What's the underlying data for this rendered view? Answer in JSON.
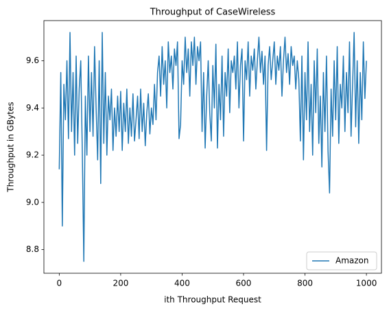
{
  "chart_data": {
    "type": "line",
    "title": "Throughput of CaseWireless",
    "x_label": "ith Throughput Request",
    "y_label": "Throughput in GBytes",
    "legend": "lower right",
    "grid": false,
    "xlim": [
      -49.95,
      1048.95
    ],
    "xticks": [
      0,
      200,
      400,
      600,
      800,
      1000
    ],
    "ylim": [
      8.7,
      9.77
    ],
    "yticks": [
      8.8,
      {
        "value": 9,
        "label": "9.0"
      },
      9.2,
      9.4,
      9.6
    ],
    "x": [
      0,
      5,
      10,
      15,
      20,
      25,
      30,
      35,
      40,
      45,
      50,
      55,
      60,
      65,
      70,
      75,
      80,
      85,
      90,
      95,
      100,
      105,
      110,
      115,
      120,
      125,
      130,
      135,
      140,
      145,
      150,
      155,
      160,
      165,
      170,
      175,
      180,
      185,
      190,
      195,
      200,
      205,
      210,
      215,
      220,
      225,
      230,
      235,
      240,
      245,
      250,
      255,
      260,
      265,
      270,
      275,
      280,
      285,
      290,
      295,
      300,
      305,
      310,
      315,
      320,
      325,
      330,
      335,
      340,
      345,
      350,
      355,
      360,
      365,
      370,
      375,
      380,
      385,
      390,
      395,
      400,
      405,
      410,
      415,
      420,
      425,
      430,
      435,
      440,
      445,
      450,
      455,
      460,
      465,
      470,
      475,
      480,
      485,
      490,
      495,
      500,
      505,
      510,
      515,
      520,
      525,
      530,
      535,
      540,
      545,
      550,
      555,
      560,
      565,
      570,
      575,
      580,
      585,
      590,
      595,
      600,
      605,
      610,
      615,
      620,
      625,
      630,
      635,
      640,
      645,
      650,
      655,
      660,
      665,
      670,
      675,
      680,
      685,
      690,
      695,
      700,
      705,
      710,
      715,
      720,
      725,
      730,
      735,
      740,
      745,
      750,
      755,
      760,
      765,
      770,
      775,
      780,
      785,
      790,
      795,
      800,
      805,
      810,
      815,
      820,
      825,
      830,
      835,
      840,
      845,
      850,
      855,
      860,
      865,
      870,
      875,
      880,
      885,
      890,
      895,
      900,
      905,
      910,
      915,
      920,
      925,
      930,
      935,
      940,
      945,
      950,
      955,
      960,
      965,
      970,
      975,
      980,
      985,
      990,
      995,
      1000
    ],
    "series": [
      {
        "name": "Amazon",
        "color": "#1f77b4",
        "values": [
          9.14,
          9.55,
          8.9,
          9.5,
          9.35,
          9.6,
          9.27,
          9.72,
          9.3,
          9.55,
          9.2,
          9.62,
          9.25,
          9.48,
          9.6,
          9.22,
          8.75,
          9.45,
          9.2,
          9.62,
          9.3,
          9.55,
          9.28,
          9.66,
          9.4,
          9.18,
          9.6,
          9.08,
          9.72,
          9.25,
          9.55,
          9.2,
          9.45,
          9.35,
          9.48,
          9.22,
          9.4,
          9.28,
          9.45,
          9.3,
          9.47,
          9.22,
          9.42,
          9.3,
          9.48,
          9.25,
          9.4,
          9.28,
          9.46,
          9.26,
          9.35,
          9.45,
          9.27,
          9.48,
          9.3,
          9.42,
          9.24,
          9.38,
          9.46,
          9.29,
          9.4,
          9.33,
          9.5,
          9.35,
          9.55,
          9.62,
          9.45,
          9.66,
          9.5,
          9.6,
          9.4,
          9.68,
          9.55,
          9.62,
          9.48,
          9.65,
          9.58,
          9.68,
          9.27,
          9.33,
          9.6,
          9.5,
          9.7,
          9.55,
          9.65,
          9.45,
          9.68,
          9.58,
          9.7,
          9.5,
          9.66,
          9.6,
          9.68,
          9.3,
          9.55,
          9.23,
          9.45,
          9.6,
          9.38,
          9.26,
          9.58,
          9.4,
          9.67,
          9.23,
          9.5,
          9.35,
          9.62,
          9.28,
          9.55,
          9.45,
          9.65,
          9.38,
          9.6,
          9.55,
          9.62,
          9.48,
          9.68,
          9.4,
          9.58,
          9.65,
          9.26,
          9.6,
          9.52,
          9.68,
          9.45,
          9.62,
          9.56,
          9.65,
          9.48,
          9.6,
          9.7,
          9.55,
          9.64,
          9.5,
          9.62,
          9.22,
          9.58,
          9.66,
          9.52,
          9.6,
          9.68,
          9.5,
          9.62,
          9.56,
          9.66,
          9.45,
          9.6,
          9.7,
          9.55,
          9.63,
          9.5,
          9.66,
          9.58,
          9.62,
          9.48,
          9.6,
          9.52,
          9.26,
          9.62,
          9.18,
          9.55,
          9.35,
          9.68,
          9.3,
          9.5,
          9.2,
          9.6,
          9.38,
          9.65,
          9.25,
          9.45,
          9.15,
          9.55,
          9.3,
          9.62,
          9.22,
          9.04,
          9.48,
          9.28,
          9.6,
          9.35,
          9.66,
          9.25,
          9.5,
          9.4,
          9.62,
          9.3,
          9.55,
          9.38,
          9.68,
          9.28,
          9.5,
          9.72,
          9.32,
          9.6,
          9.25,
          9.55,
          9.35,
          9.68,
          9.44,
          9.6
        ]
      }
    ]
  }
}
